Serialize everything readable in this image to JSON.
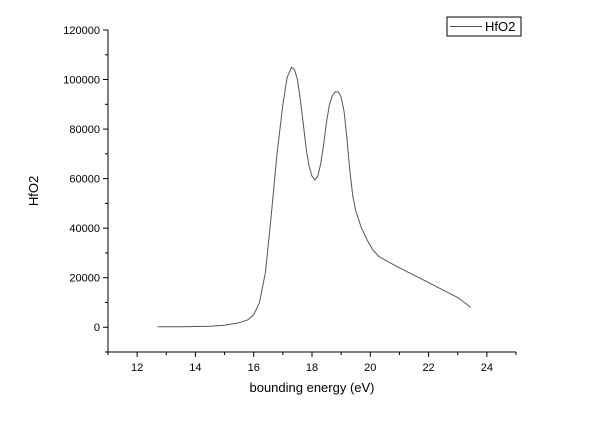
{
  "chart_data": {
    "type": "line",
    "title": "",
    "xlabel": "bounding energy (eV)",
    "ylabel": "HfO2",
    "xlim": [
      11,
      25
    ],
    "ylim": [
      -10000,
      120000
    ],
    "x_ticks": [
      12,
      14,
      16,
      18,
      20,
      22,
      24
    ],
    "y_ticks": [
      0,
      20000,
      40000,
      60000,
      80000,
      100000,
      120000
    ],
    "legend": {
      "position": "top-right",
      "entries": [
        "HfO2"
      ]
    },
    "grid": false,
    "series": [
      {
        "name": "HfO2",
        "color": "#555555",
        "x": [
          12.7,
          13.5,
          14.5,
          15.0,
          15.5,
          15.8,
          16.0,
          16.2,
          16.4,
          16.6,
          16.8,
          17.0,
          17.15,
          17.3,
          17.4,
          17.5,
          17.6,
          17.7,
          17.8,
          17.9,
          18.0,
          18.1,
          18.2,
          18.3,
          18.4,
          18.5,
          18.6,
          18.7,
          18.8,
          18.9,
          19.0,
          19.1,
          19.2,
          19.3,
          19.4,
          19.5,
          19.7,
          19.9,
          20.1,
          20.3,
          20.6,
          21.0,
          21.5,
          22.0,
          22.5,
          23.0,
          23.45
        ],
        "y": [
          200,
          200,
          400,
          800,
          1800,
          3000,
          5000,
          10000,
          22000,
          45000,
          70000,
          90000,
          101000,
          105000,
          104000,
          100000,
          92000,
          82000,
          72000,
          65000,
          61000,
          59500,
          61000,
          66000,
          74000,
          83000,
          90000,
          93500,
          95000,
          95000,
          93000,
          87000,
          76000,
          63000,
          53000,
          47000,
          40000,
          35000,
          31000,
          28500,
          26500,
          24000,
          21000,
          18000,
          15000,
          12000,
          8000
        ]
      }
    ]
  }
}
